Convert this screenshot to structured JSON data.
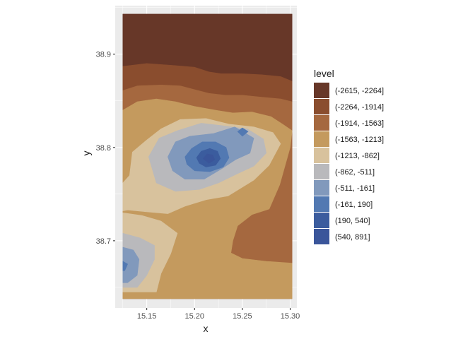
{
  "chart_data": {
    "type": "contour",
    "xlabel": "x",
    "ylabel": "y",
    "xlim": [
      15.117,
      15.307
    ],
    "ylim": [
      38.628,
      38.952
    ],
    "x_ticks": [
      {
        "value": 15.15,
        "label": "15.15"
      },
      {
        "value": 15.2,
        "label": "15.20"
      },
      {
        "value": 15.25,
        "label": "15.25"
      },
      {
        "value": 15.3,
        "label": "15.30"
      }
    ],
    "y_ticks": [
      {
        "value": 38.7,
        "label": "38.7"
      },
      {
        "value": 38.8,
        "label": "38.8"
      },
      {
        "value": 38.9,
        "label": "38.9"
      }
    ],
    "data_extent": {
      "x": [
        15.125,
        15.302
      ],
      "y": [
        38.638,
        38.943
      ]
    },
    "legend": {
      "title": "level",
      "position": "right",
      "entries": [
        {
          "label": "(-2615, -2264]",
          "color": "#673728"
        },
        {
          "label": "(-2264, -1914]",
          "color": "#8a4d2e"
        },
        {
          "label": "(-1914, -1563]",
          "color": "#a5683f"
        },
        {
          "label": "(-1563, -1213]",
          "color": "#c49a5e"
        },
        {
          "label": "(-1213, -862]",
          "color": "#d8c29d"
        },
        {
          "label": "(-862, -511]",
          "color": "#b9b9bc"
        },
        {
          "label": "(-511, -161]",
          "color": "#8199bc"
        },
        {
          "label": "(-161, 190]",
          "color": "#5279b2"
        },
        {
          "label": "(190, 540]",
          "color": "#3b5c9e"
        },
        {
          "label": "(540, 891]",
          "color": "#3a559a"
        }
      ]
    },
    "regions": [
      {
        "level": 0,
        "points": [
          [
            15.125,
            38.943
          ],
          [
            15.302,
            38.943
          ],
          [
            15.302,
            38.638
          ],
          [
            15.125,
            38.638
          ]
        ]
      },
      {
        "level": 1,
        "points": [
          [
            15.125,
            38.887
          ],
          [
            15.15,
            38.89
          ],
          [
            15.177,
            38.888
          ],
          [
            15.2,
            38.886
          ],
          [
            15.215,
            38.881
          ],
          [
            15.228,
            38.879
          ],
          [
            15.25,
            38.879
          ],
          [
            15.27,
            38.878
          ],
          [
            15.29,
            38.876
          ],
          [
            15.302,
            38.871
          ],
          [
            15.302,
            38.638
          ],
          [
            15.125,
            38.638
          ]
        ]
      },
      {
        "level": 2,
        "points": [
          [
            15.125,
            38.861
          ],
          [
            15.14,
            38.866
          ],
          [
            15.165,
            38.867
          ],
          [
            15.185,
            38.866
          ],
          [
            15.2,
            38.862
          ],
          [
            15.215,
            38.858
          ],
          [
            15.232,
            38.856
          ],
          [
            15.25,
            38.856
          ],
          [
            15.27,
            38.854
          ],
          [
            15.29,
            38.852
          ],
          [
            15.302,
            38.849
          ],
          [
            15.302,
            38.638
          ],
          [
            15.125,
            38.638
          ]
        ]
      },
      {
        "level": 3,
        "points": [
          [
            15.125,
            38.84
          ],
          [
            15.14,
            38.849
          ],
          [
            15.16,
            38.852
          ],
          [
            15.18,
            38.849
          ],
          [
            15.2,
            38.844
          ],
          [
            15.222,
            38.84
          ],
          [
            15.24,
            38.837
          ],
          [
            15.26,
            38.838
          ],
          [
            15.28,
            38.833
          ],
          [
            15.292,
            38.825
          ],
          [
            15.302,
            38.818
          ],
          [
            15.302,
            38.817
          ],
          [
            15.3,
            38.8
          ],
          [
            15.289,
            38.76
          ],
          [
            15.278,
            38.734
          ],
          [
            15.26,
            38.728
          ],
          [
            15.245,
            38.716
          ],
          [
            15.24,
            38.7
          ],
          [
            15.238,
            38.687
          ],
          [
            15.25,
            38.681
          ],
          [
            15.275,
            38.678
          ],
          [
            15.302,
            38.676
          ],
          [
            15.302,
            38.638
          ],
          [
            15.125,
            38.638
          ]
        ]
      },
      {
        "level": 4,
        "points": [
          [
            15.125,
            38.762
          ],
          [
            15.132,
            38.77
          ],
          [
            15.135,
            38.795
          ],
          [
            15.15,
            38.808
          ],
          [
            15.165,
            38.82
          ],
          [
            15.185,
            38.83
          ],
          [
            15.212,
            38.831
          ],
          [
            15.236,
            38.825
          ],
          [
            15.262,
            38.822
          ],
          [
            15.282,
            38.816
          ],
          [
            15.29,
            38.804
          ],
          [
            15.278,
            38.781
          ],
          [
            15.262,
            38.765
          ],
          [
            15.235,
            38.748
          ],
          [
            15.212,
            38.744
          ],
          [
            15.19,
            38.737
          ],
          [
            15.172,
            38.729
          ],
          [
            15.15,
            38.731
          ],
          [
            15.13,
            38.733
          ],
          [
            15.125,
            38.732
          ]
        ]
      },
      {
        "level": 4,
        "points": [
          [
            15.125,
            38.73
          ],
          [
            15.145,
            38.727
          ],
          [
            15.165,
            38.721
          ],
          [
            15.182,
            38.708
          ],
          [
            15.175,
            38.686
          ],
          [
            15.165,
            38.665
          ],
          [
            15.16,
            38.645
          ],
          [
            15.125,
            38.645
          ]
        ]
      },
      {
        "level": 5,
        "points": [
          [
            15.152,
            38.79
          ],
          [
            15.163,
            38.81
          ],
          [
            15.182,
            38.818
          ],
          [
            15.207,
            38.826
          ],
          [
            15.232,
            38.823
          ],
          [
            15.255,
            38.82
          ],
          [
            15.272,
            38.809
          ],
          [
            15.275,
            38.794
          ],
          [
            15.262,
            38.78
          ],
          [
            15.245,
            38.772
          ],
          [
            15.225,
            38.762
          ],
          [
            15.205,
            38.755
          ],
          [
            15.18,
            38.753
          ],
          [
            15.16,
            38.762
          ]
        ]
      },
      {
        "level": 5,
        "points": [
          [
            15.125,
            38.708
          ],
          [
            15.143,
            38.703
          ],
          [
            15.158,
            38.695
          ],
          [
            15.158,
            38.68
          ],
          [
            15.15,
            38.663
          ],
          [
            15.14,
            38.65
          ],
          [
            15.125,
            38.65
          ]
        ]
      },
      {
        "level": 6,
        "points": [
          [
            15.172,
            38.79
          ],
          [
            15.18,
            38.806
          ],
          [
            15.195,
            38.812
          ],
          [
            15.22,
            38.815
          ],
          [
            15.242,
            38.822
          ],
          [
            15.262,
            38.81
          ],
          [
            15.258,
            38.794
          ],
          [
            15.243,
            38.787
          ],
          [
            15.228,
            38.777
          ],
          [
            15.21,
            38.766
          ],
          [
            15.19,
            38.766
          ],
          [
            15.177,
            38.775
          ]
        ]
      },
      {
        "level": 6,
        "points": [
          [
            15.125,
            38.693
          ],
          [
            15.136,
            38.69
          ],
          [
            15.142,
            38.68
          ],
          [
            15.14,
            38.663
          ],
          [
            15.13,
            38.655
          ],
          [
            15.125,
            38.655
          ]
        ]
      },
      {
        "level": 7,
        "points": [
          [
            15.19,
            38.79
          ],
          [
            15.197,
            38.799
          ],
          [
            15.208,
            38.806
          ],
          [
            15.222,
            38.806
          ],
          [
            15.233,
            38.8
          ],
          [
            15.236,
            38.789
          ],
          [
            15.23,
            38.779
          ],
          [
            15.216,
            38.774
          ],
          [
            15.2,
            38.775
          ],
          [
            15.192,
            38.782
          ]
        ]
      },
      {
        "level": 7,
        "points": [
          [
            15.245,
            38.817
          ],
          [
            15.25,
            38.821
          ],
          [
            15.256,
            38.817
          ],
          [
            15.25,
            38.812
          ]
        ]
      },
      {
        "level": 7,
        "points": [
          [
            15.125,
            38.678
          ],
          [
            15.13,
            38.675
          ],
          [
            15.127,
            38.668
          ],
          [
            15.125,
            38.668
          ]
        ]
      },
      {
        "level": 8,
        "points": [
          [
            15.202,
            38.789
          ],
          [
            15.207,
            38.796
          ],
          [
            15.216,
            38.799
          ],
          [
            15.224,
            38.796
          ],
          [
            15.227,
            38.788
          ],
          [
            15.222,
            38.781
          ],
          [
            15.212,
            38.779
          ],
          [
            15.205,
            38.783
          ]
        ]
      },
      {
        "level": 9,
        "points": [
          [
            15.209,
            38.788
          ],
          [
            15.213,
            38.793
          ],
          [
            15.219,
            38.792
          ],
          [
            15.221,
            38.787
          ],
          [
            15.215,
            38.783
          ]
        ]
      }
    ]
  }
}
